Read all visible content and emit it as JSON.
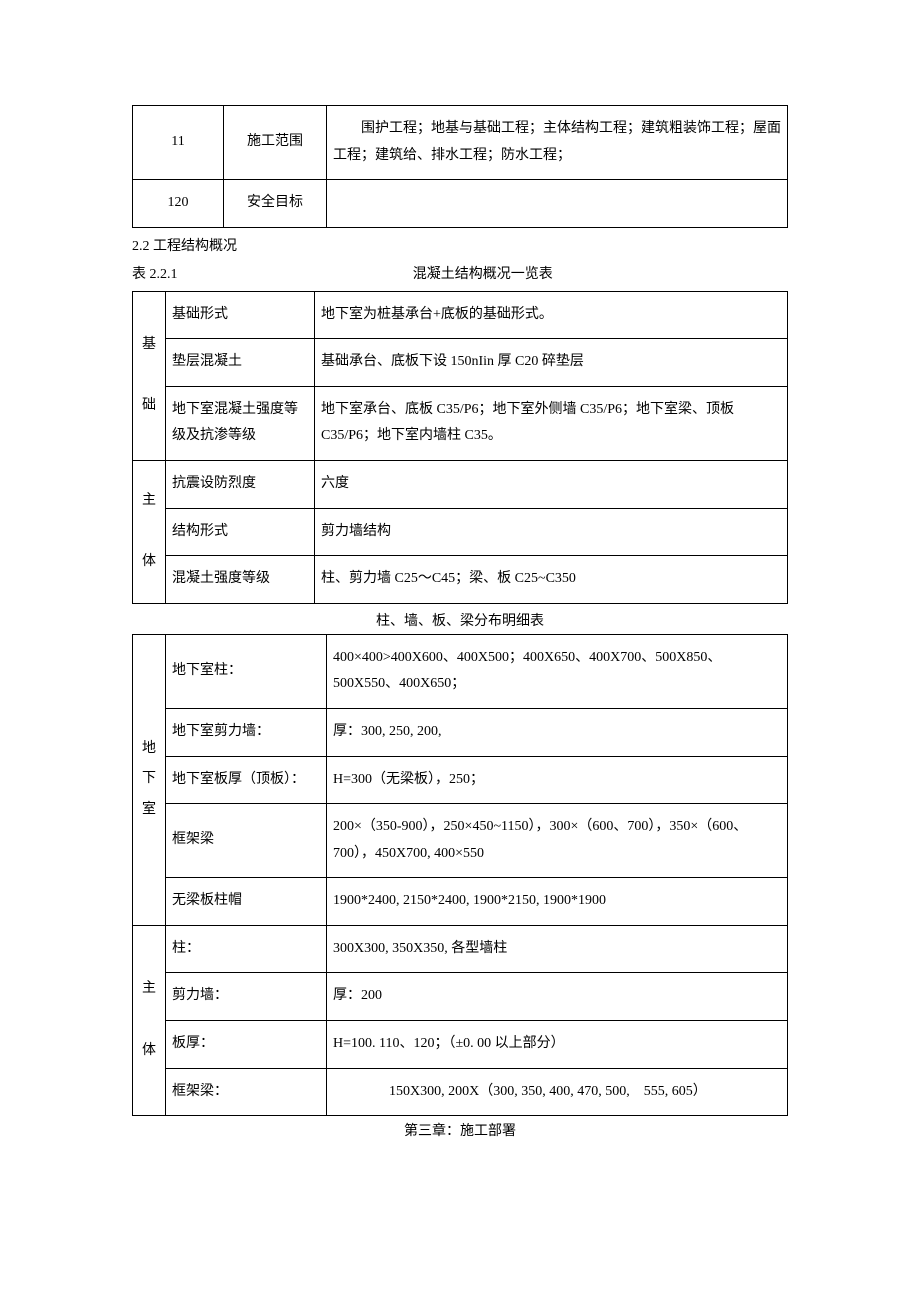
{
  "top_table": {
    "rows": [
      {
        "no": "11",
        "label": "施工范围",
        "content": "　　围护工程；地基与基础工程；主体结构工程；建筑粗装饰工程；屋面工程；建筑给、排水工程；防水工程；"
      },
      {
        "no": "120",
        "label": "安全目标",
        "content": ""
      }
    ]
  },
  "section2_2": {
    "heading": "2.2 工程结构概况",
    "caption_left": "表 2.2.1",
    "caption_center": "混凝土结构概况一览表",
    "group1_label": "基\n\n础",
    "group2_label": "主\n\n体",
    "rows": [
      {
        "k": "基础形式",
        "v": "地下室为桩基承台+底板的基础形式。"
      },
      {
        "k": "垫层混凝土",
        "v": "基础承台、底板下设 150nIin 厚 C20 碎垫层"
      },
      {
        "k": "地下室混凝土强度等级及抗渗等级",
        "v": "地下室承台、底板 C35/P6；地下室外侧墙 C35/P6；地下室梁、顶板 C35/P6；地下室内墙柱 C35。"
      },
      {
        "k": "抗震设防烈度",
        "v": "六度"
      },
      {
        "k": "结构形式",
        "v": "剪力墙结构"
      },
      {
        "k": "混凝土强度等级",
        "v": "柱、剪力墙 C25～C45；梁、板 C25~C350"
      }
    ]
  },
  "detail_table": {
    "title": "柱、墙、板、梁分布明细表",
    "group1_label": "地\n下\n室",
    "group2_label": "主\n\n体",
    "rows": [
      {
        "k": "地下室柱：",
        "v": "400×400>400X600、400X500；400X650、400X700、500X850、500X550、400X650；"
      },
      {
        "k": "地下室剪力墙：",
        "v": "厚：300, 250, 200,"
      },
      {
        "k": "地下室板厚（顶板）：",
        "v": "H=300（无梁板），250；"
      },
      {
        "k": "框架梁",
        "v": "200×（350-900），250×450~1150），300×（600、700），350×（600、700），450X700, 400×550"
      },
      {
        "k": "无梁板柱帽",
        "v": "1900*2400, 2150*2400, 1900*2150, 1900*1900"
      },
      {
        "k": "柱：",
        "v": "300X300, 350X350, 各型墙柱"
      },
      {
        "k": "剪力墙：",
        "v": "厚：200"
      },
      {
        "k": "板厚：",
        "v": "H=100. 110、120；（±0. 00 以上部分）"
      },
      {
        "k": "框架梁：",
        "v": "　　　　150X300, 200X（300, 350, 400, 470, 500,　555, 605）"
      }
    ]
  },
  "chapter3": "第三章：施工部署"
}
